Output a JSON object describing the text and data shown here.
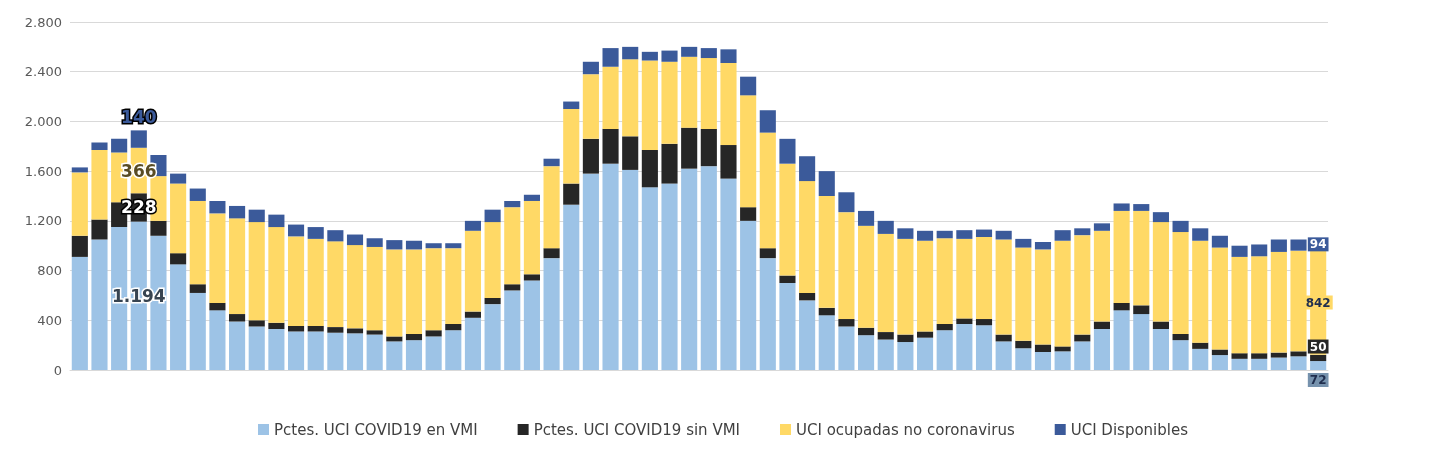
{
  "chart_data": {
    "type": "bar",
    "stacked": true,
    "grid": "y",
    "legend": "bottom",
    "categories": [
      null,
      null,
      null,
      null,
      null,
      null,
      null,
      null,
      null,
      null,
      null,
      null,
      null,
      null,
      null,
      null,
      null,
      null,
      null,
      null,
      null,
      null,
      null,
      null,
      null,
      null,
      null,
      null,
      null,
      null,
      null,
      null,
      null,
      null,
      null,
      null,
      null,
      null,
      null,
      null,
      null,
      null,
      null,
      null,
      null,
      null,
      null,
      null,
      null,
      null,
      null,
      null,
      null,
      null,
      null,
      null,
      null,
      null,
      null,
      null,
      null,
      null,
      null,
      null
    ],
    "ylim": [
      0,
      2800
    ],
    "yticks": [
      0,
      {
        "value": 400,
        "label": "400"
      },
      {
        "value": 800,
        "label": "800"
      },
      {
        "value": 1200,
        "label": "1.200"
      },
      {
        "value": 1600,
        "label": "1.600"
      },
      {
        "value": 2000,
        "label": "2.000"
      },
      {
        "value": 2400,
        "label": "2.400"
      },
      {
        "value": 2800,
        "label": "2.800"
      }
    ],
    "series": [
      {
        "name": "Pctes. UCI COVID19 en VMI",
        "color": "#9dc3e6",
        "values": [
          910,
          1050,
          1150,
          1194,
          1080,
          850,
          620,
          480,
          390,
          350,
          330,
          310,
          310,
          300,
          295,
          285,
          230,
          240,
          270,
          320,
          420,
          530,
          640,
          720,
          900,
          1330,
          1580,
          1660,
          1610,
          1470,
          1500,
          1620,
          1640,
          1540,
          1200,
          900,
          700,
          560,
          440,
          350,
          280,
          245,
          225,
          260,
          320,
          370,
          360,
          230,
          175,
          145,
          150,
          230,
          330,
          480,
          450,
          330,
          240,
          170,
          120,
          90,
          90,
          100,
          110,
          72
        ],
        "value_labels": [
          null,
          null,
          null,
          "1.194",
          null,
          null,
          null,
          null,
          null,
          null,
          null,
          null,
          null,
          null,
          null,
          null,
          null,
          null,
          null,
          null,
          null,
          null,
          null,
          null,
          null,
          null,
          null,
          null,
          null,
          null,
          null,
          null,
          null,
          null,
          null,
          null,
          null,
          null,
          null,
          null,
          null,
          null,
          null,
          null,
          null,
          null,
          null,
          null,
          null,
          null,
          null,
          null,
          null,
          null,
          null,
          null,
          null,
          null,
          null,
          null,
          null,
          null,
          null,
          "72"
        ]
      },
      {
        "name": "Pctes. UCI COVID19 sin VMI",
        "color": "#262626",
        "values": [
          170,
          160,
          200,
          228,
          120,
          90,
          70,
          60,
          60,
          50,
          50,
          45,
          45,
          45,
          40,
          35,
          40,
          50,
          50,
          50,
          50,
          50,
          50,
          50,
          80,
          170,
          280,
          280,
          270,
          300,
          320,
          330,
          300,
          270,
          110,
          80,
          60,
          60,
          60,
          60,
          60,
          60,
          60,
          50,
          50,
          45,
          50,
          55,
          60,
          60,
          40,
          55,
          60,
          60,
          70,
          60,
          50,
          50,
          45,
          45,
          45,
          40,
          40,
          50
        ],
        "value_labels": [
          null,
          null,
          null,
          "228",
          null,
          null,
          null,
          null,
          null,
          null,
          null,
          null,
          null,
          null,
          null,
          null,
          null,
          null,
          null,
          null,
          null,
          null,
          null,
          null,
          null,
          null,
          null,
          null,
          null,
          null,
          null,
          null,
          null,
          null,
          null,
          null,
          null,
          null,
          null,
          null,
          null,
          null,
          null,
          null,
          null,
          null,
          null,
          null,
          null,
          null,
          null,
          null,
          null,
          null,
          null,
          null,
          null,
          null,
          null,
          null,
          null,
          null,
          null,
          "50"
        ]
      },
      {
        "name": "UCI ocupadas no coronavirus",
        "color": "#ffd966",
        "values": [
          510,
          560,
          400,
          366,
          360,
          560,
          670,
          720,
          770,
          790,
          770,
          720,
          700,
          690,
          670,
          670,
          700,
          680,
          660,
          610,
          650,
          610,
          620,
          590,
          660,
          600,
          520,
          500,
          620,
          720,
          660,
          570,
          570,
          660,
          900,
          930,
          900,
          900,
          900,
          860,
          820,
          790,
          770,
          730,
          690,
          640,
          660,
          765,
          750,
          765,
          850,
          800,
          730,
          740,
          760,
          800,
          820,
          820,
          820,
          775,
          780,
          810,
          810,
          842
        ],
        "value_labels": [
          null,
          null,
          null,
          "366",
          null,
          null,
          null,
          null,
          null,
          null,
          null,
          null,
          null,
          null,
          null,
          null,
          null,
          null,
          null,
          null,
          null,
          null,
          null,
          null,
          null,
          null,
          null,
          null,
          null,
          null,
          null,
          null,
          null,
          null,
          null,
          null,
          null,
          null,
          null,
          null,
          null,
          null,
          null,
          null,
          null,
          null,
          null,
          null,
          null,
          null,
          null,
          null,
          null,
          null,
          null,
          null,
          null,
          null,
          null,
          null,
          null,
          null,
          null,
          "842"
        ]
      },
      {
        "name": "UCI Disponibles",
        "color": "#3b5a9a",
        "values": [
          40,
          60,
          110,
          140,
          170,
          80,
          100,
          100,
          100,
          100,
          100,
          95,
          95,
          90,
          85,
          70,
          75,
          70,
          40,
          40,
          80,
          100,
          50,
          50,
          60,
          60,
          100,
          150,
          100,
          70,
          90,
          80,
          80,
          110,
          150,
          180,
          200,
          200,
          200,
          160,
          120,
          105,
          85,
          80,
          60,
          70,
          60,
          70,
          70,
          60,
          85,
          55,
          60,
          60,
          55,
          80,
          90,
          100,
          95,
          90,
          95,
          100,
          90,
          94
        ],
        "value_labels": [
          null,
          null,
          null,
          "140",
          null,
          null,
          null,
          null,
          null,
          null,
          null,
          null,
          null,
          null,
          null,
          null,
          null,
          null,
          null,
          null,
          null,
          null,
          null,
          null,
          null,
          null,
          null,
          null,
          null,
          null,
          null,
          null,
          null,
          null,
          null,
          null,
          null,
          null,
          null,
          null,
          null,
          null,
          null,
          null,
          null,
          null,
          null,
          null,
          null,
          null,
          null,
          null,
          null,
          null,
          null,
          null,
          null,
          null,
          null,
          null,
          null,
          null,
          null,
          "94"
        ]
      }
    ]
  }
}
